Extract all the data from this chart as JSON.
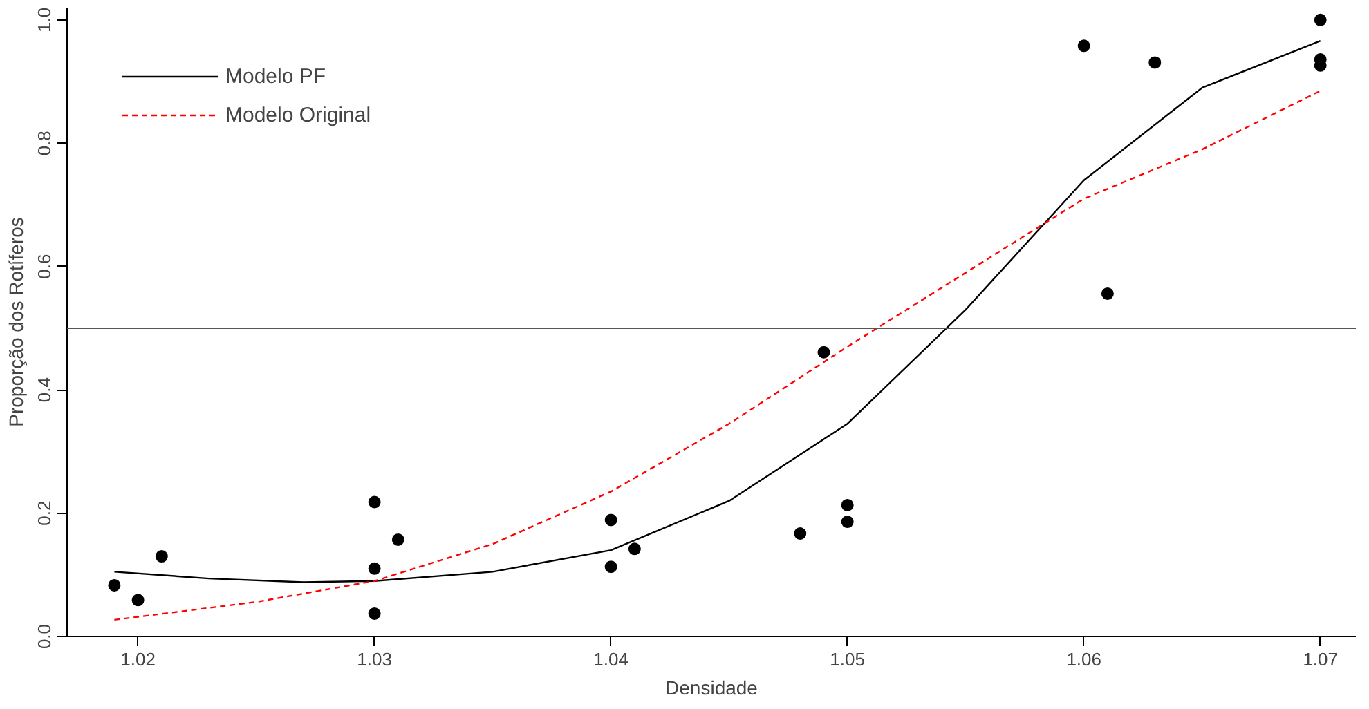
{
  "chart_data": {
    "type": "scatter",
    "xlabel": "Densidade",
    "ylabel": "Proporção dos Rotíferos",
    "xlim": [
      1.017,
      1.0715
    ],
    "ylim": [
      0,
      1.02
    ],
    "xticks": [
      1.02,
      1.03,
      1.04,
      1.05,
      1.06,
      1.07
    ],
    "yticks": [
      {
        "value": 0,
        "label": "0.0"
      },
      0.2,
      0.4,
      0.6,
      0.8,
      {
        "value": 1,
        "label": "1.0"
      }
    ],
    "grid": false,
    "legend": "top left",
    "series": [
      {
        "marker": "circle",
        "color": "#000000",
        "x": [
          1.019,
          1.02,
          1.021,
          1.03,
          1.03,
          1.03,
          1.031,
          1.04,
          1.04,
          1.041,
          1.048,
          1.049,
          1.05,
          1.05,
          1.06,
          1.061,
          1.063,
          1.07,
          1.07,
          1.07
        ],
        "values": [
          0.083,
          0.059,
          0.13,
          0.218,
          0.11,
          0.037,
          0.157,
          0.189,
          0.113,
          0.142,
          0.167,
          0.461,
          0.213,
          0.186,
          0.958,
          0.556,
          0.931,
          1.0,
          0.936,
          0.926
        ]
      },
      {
        "type": "line",
        "name": "Modelo PF",
        "color": "#000000",
        "line_style": "solid",
        "x": [
          1.019,
          1.023,
          1.027,
          1.03,
          1.035,
          1.04,
          1.045,
          1.05,
          1.055,
          1.06,
          1.065,
          1.07
        ],
        "values": [
          0.105,
          0.094,
          0.088,
          0.09,
          0.105,
          0.14,
          0.22,
          0.345,
          0.53,
          0.74,
          0.89,
          0.966
        ]
      },
      {
        "type": "line",
        "name": "Modelo Original",
        "color": "#ff0000",
        "line_style": "dashed",
        "x": [
          1.019,
          1.025,
          1.03,
          1.035,
          1.04,
          1.045,
          1.05,
          1.055,
          1.06,
          1.065,
          1.07
        ],
        "values": [
          0.027,
          0.056,
          0.09,
          0.15,
          0.235,
          0.345,
          0.47,
          0.59,
          0.71,
          0.79,
          0.885
        ]
      }
    ],
    "ref_lines": [
      {
        "axis": "y",
        "value": 0.5,
        "color": "#555555"
      }
    ]
  }
}
